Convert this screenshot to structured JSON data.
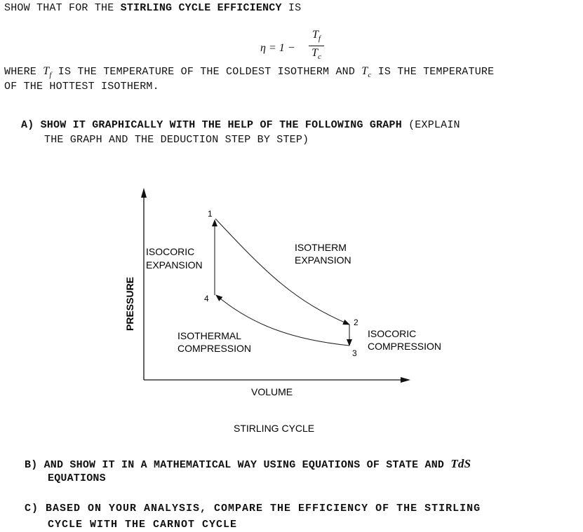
{
  "intro": {
    "prefix": "SHOW THAT FOR THE",
    "bold": "STIRLING CYCLE EFFICIENCY",
    "suffix": "IS"
  },
  "formula": {
    "lhs": "η = 1 −",
    "numerator": "T",
    "numerator_sub": "f",
    "denominator": "T",
    "denominator_sub": "c"
  },
  "where": {
    "w1": "WHERE",
    "tf": "T",
    "tf_sub": "f",
    "w2": "IS THE TEMPERATURE OF THE COLDEST ISOTHERM AND",
    "tc": "T",
    "tc_sub": "c",
    "w3": "IS THE TEMPERATURE",
    "line2": "OF THE HOTTEST ISOTHERM."
  },
  "part_a": {
    "label": "A)",
    "bold": "SHOW IT GRAPHICALLY WITH THE HELP OF THE FOLLOWING GRAPH",
    "rest1": "(EXPLAIN",
    "line2": "THE GRAPH AND THE DEDUCTION STEP BY STEP)"
  },
  "diagram": {
    "points": {
      "p1": "1",
      "p2": "2",
      "p3": "3",
      "p4": "4"
    },
    "isocoric_expansion": [
      "ISOCORIC",
      "EXPANSION"
    ],
    "isotherm_expansion": [
      "ISOTHERM",
      "EXPANSION"
    ],
    "isothermal_compression": [
      "ISOTHERMAL",
      "COMPRESSION"
    ],
    "isocoric_compression": [
      "ISOCORIC",
      "COMPRESSION"
    ],
    "x_axis": "VOLUME",
    "y_axis": "PRESSURE",
    "caption": "STIRLING CYCLE"
  },
  "part_b": {
    "line1": "B) AND SHOW IT IN A MATHEMATICAL WAY USING EQUATIONS OF STATE AND",
    "tds": "TdS",
    "line2": "EQUATIONS"
  },
  "part_c": {
    "line1": "C) BASED ON YOUR ANALYSIS, COMPARE THE EFFICIENCY OF THE STIRLING",
    "line2": "CYCLE WITH THE CARNOT CYCLE"
  }
}
